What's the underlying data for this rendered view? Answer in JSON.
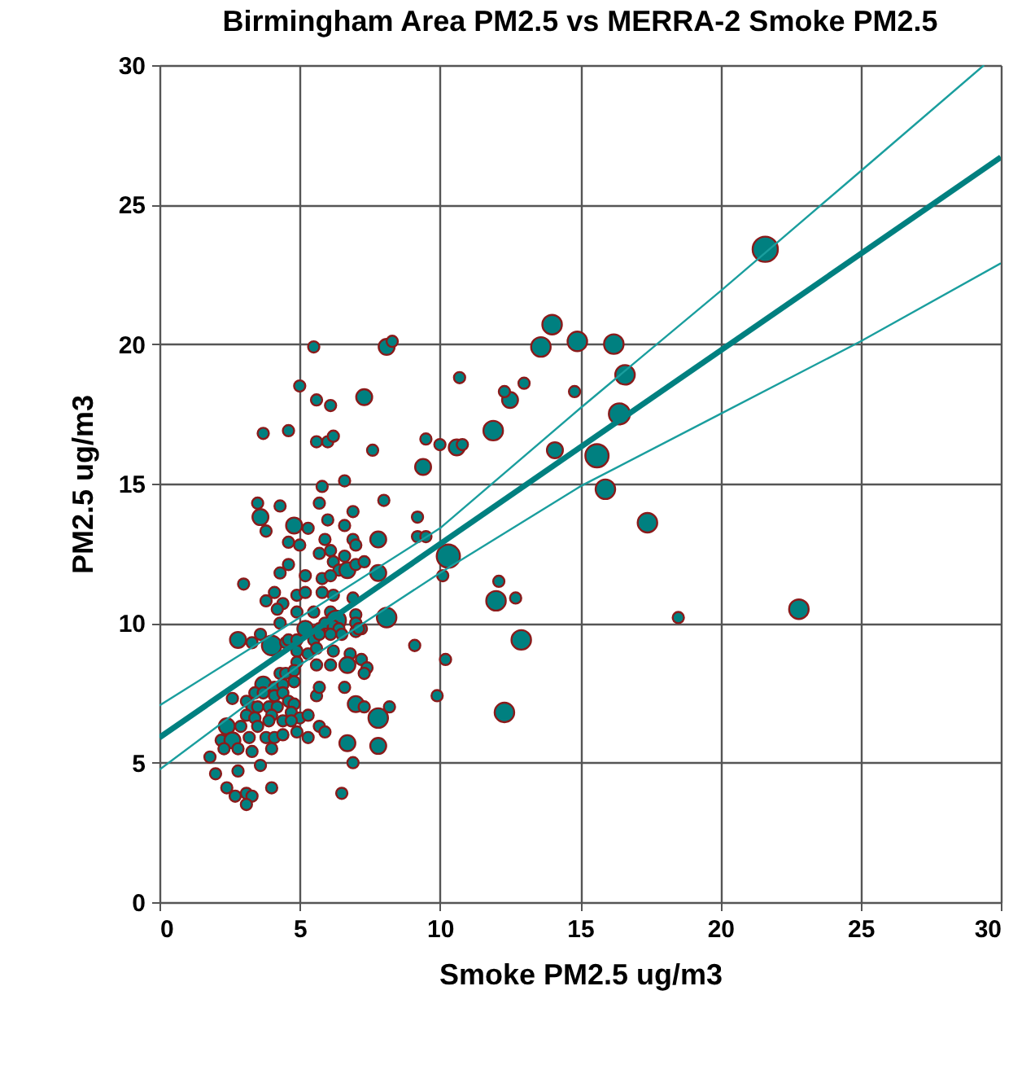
{
  "chart_data": {
    "type": "bubble",
    "title": "Birmingham Area PM2.5 vs MERRA-2 Smoke PM2.5",
    "xlabel": "Smoke PM2.5 ug/m3",
    "ylabel": "PM2.5 ug/m3",
    "xlim": [
      0,
      30
    ],
    "ylim": [
      0,
      30
    ],
    "xticks": [
      0,
      5,
      10,
      15,
      20,
      25,
      30
    ],
    "yticks": [
      0,
      5,
      10,
      15,
      20,
      25,
      30
    ],
    "grid": true,
    "legend": false,
    "series": [
      {
        "marker": "circle",
        "color": "#008080",
        "x": [
          5.5,
          8.1,
          8.3,
          5.0,
          5.6,
          6.1,
          7.3,
          3.7,
          4.6,
          5.6,
          6.0,
          6.2,
          7.6,
          9.4,
          6.6,
          5.8,
          5.7,
          6.9,
          8.0,
          3.5,
          3.6,
          4.3,
          3.8,
          4.8,
          6.0,
          6.6,
          5.3,
          4.6,
          5.9,
          6.9,
          7.0,
          7.8,
          9.2,
          9.2,
          9.5,
          5.0,
          4.6,
          5.7,
          6.1,
          6.6,
          6.2,
          6.4,
          6.7,
          7.0,
          7.3,
          7.8,
          4.3,
          5.2,
          5.8,
          6.1,
          3.0,
          4.1,
          4.9,
          5.2,
          5.8,
          6.2,
          3.8,
          4.4,
          6.9,
          4.2,
          4.9,
          5.5,
          6.1,
          7.0,
          4.3,
          6.3,
          8.1,
          7.0,
          7.2,
          5.2,
          5.7,
          5.9,
          6.2,
          6.4,
          2.8,
          3.3,
          3.6,
          4.0,
          4.5,
          4.6,
          4.9,
          5.5,
          5.7,
          6.1,
          6.5,
          7.0,
          7.1,
          9.1,
          4.9,
          5.3,
          5.6,
          6.2,
          6.8,
          4.9,
          6.7,
          7.2,
          7.4,
          5.6,
          6.1,
          4.3,
          4.5,
          4.8,
          7.3,
          3.7,
          4.1,
          4.4,
          4.8,
          5.6,
          5.7,
          6.6,
          2.6,
          3.1,
          3.4,
          3.7,
          4.1,
          4.4,
          3.3,
          3.5,
          3.9,
          4.2,
          4.6,
          4.8,
          7.0,
          7.3,
          8.2,
          3.1,
          3.4,
          4.0,
          4.7,
          5.0,
          2.4,
          2.9,
          3.5,
          3.9,
          4.4,
          4.7,
          5.3,
          7.8,
          2.2,
          2.6,
          3.2,
          3.8,
          4.1,
          4.4,
          4.9,
          5.3,
          5.7,
          2.3,
          2.8,
          3.3,
          4.0,
          5.9,
          6.7,
          7.8,
          1.8,
          6.9,
          2.0,
          2.8,
          3.6,
          2.4,
          4.0,
          2.7,
          3.1,
          3.3,
          3.1,
          6.5,
          14.0,
          13.6,
          14.9,
          16.2,
          16.6,
          16.4,
          15.6,
          15.9,
          17.4,
          14.1,
          11.9,
          12.5,
          12.3,
          13.0,
          14.8,
          10.7,
          9.5,
          10.0,
          10.6,
          10.8,
          10.3,
          10.1,
          12.1,
          12.0,
          12.7,
          12.9,
          10.2,
          9.9,
          12.3,
          18.5,
          22.8,
          21.6
        ],
        "values": [
          19.9,
          19.9,
          20.1,
          18.5,
          18.0,
          17.8,
          18.1,
          16.8,
          16.9,
          16.5,
          16.5,
          16.7,
          16.2,
          15.6,
          15.1,
          14.9,
          14.3,
          14.0,
          14.4,
          14.3,
          13.8,
          14.2,
          13.3,
          13.5,
          13.7,
          13.5,
          13.4,
          12.9,
          13.0,
          13.0,
          12.8,
          13.0,
          13.8,
          13.1,
          13.1,
          12.8,
          12.1,
          12.5,
          12.6,
          12.4,
          12.2,
          11.9,
          11.9,
          12.1,
          12.2,
          11.8,
          11.8,
          11.7,
          11.6,
          11.7,
          11.4,
          11.1,
          11.0,
          11.1,
          11.1,
          11.0,
          10.8,
          10.7,
          10.9,
          10.5,
          10.4,
          10.4,
          10.4,
          10.3,
          10.0,
          10.1,
          10.2,
          10.0,
          9.8,
          9.8,
          9.8,
          10.0,
          9.9,
          9.8,
          9.4,
          9.3,
          9.6,
          9.2,
          9.3,
          9.4,
          9.4,
          9.4,
          9.6,
          9.6,
          9.6,
          9.7,
          9.8,
          9.2,
          9.0,
          8.9,
          9.1,
          9.0,
          8.9,
          8.6,
          8.5,
          8.7,
          8.4,
          8.5,
          8.5,
          8.2,
          8.2,
          8.3,
          8.2,
          7.8,
          7.7,
          7.8,
          7.9,
          7.4,
          7.7,
          7.7,
          7.3,
          7.2,
          7.5,
          7.5,
          7.4,
          7.5,
          7.0,
          7.0,
          7.0,
          7.0,
          7.2,
          7.1,
          7.1,
          7.0,
          7.0,
          6.7,
          6.6,
          6.7,
          6.8,
          6.6,
          6.3,
          6.3,
          6.3,
          6.5,
          6.5,
          6.5,
          6.7,
          6.6,
          5.8,
          5.8,
          5.9,
          5.9,
          5.9,
          6.0,
          6.1,
          5.9,
          6.3,
          5.5,
          5.5,
          5.4,
          5.5,
          6.1,
          5.7,
          5.6,
          5.2,
          5.0,
          4.6,
          4.7,
          4.9,
          4.1,
          4.1,
          3.8,
          3.9,
          3.8,
          3.5,
          3.9,
          20.7,
          19.9,
          20.1,
          20.0,
          18.9,
          17.5,
          16.0,
          14.8,
          13.6,
          16.2,
          16.9,
          18.0,
          18.3,
          18.6,
          18.3,
          18.8,
          16.6,
          16.4,
          16.3,
          16.4,
          12.4,
          11.7,
          11.5,
          10.8,
          10.9,
          9.4,
          8.7,
          7.4,
          6.8,
          10.2,
          10.5,
          23.4
        ],
        "sizes": [
          0.2,
          0.4,
          0.2,
          0.2,
          0.2,
          0.2,
          0.4,
          0.2,
          0.2,
          0.2,
          0.2,
          0.2,
          0.2,
          0.4,
          0.2,
          0.2,
          0.2,
          0.2,
          0.2,
          0.2,
          0.4,
          0.2,
          0.2,
          0.4,
          0.2,
          0.2,
          0.2,
          0.2,
          0.2,
          0.2,
          0.2,
          0.4,
          0.2,
          0.2,
          0.2,
          0.2,
          0.2,
          0.2,
          0.2,
          0.2,
          0.2,
          0.2,
          0.4,
          0.2,
          0.2,
          0.4,
          0.2,
          0.2,
          0.2,
          0.2,
          0.2,
          0.2,
          0.2,
          0.2,
          0.2,
          0.2,
          0.2,
          0.2,
          0.2,
          0.2,
          0.2,
          0.2,
          0.2,
          0.2,
          0.2,
          0.6,
          0.6,
          0.2,
          0.2,
          0.4,
          0.2,
          0.2,
          0.2,
          0.2,
          0.4,
          0.2,
          0.2,
          0.6,
          0.2,
          0.2,
          0.2,
          0.2,
          0.2,
          0.2,
          0.2,
          0.2,
          0.2,
          0.2,
          0.2,
          0.2,
          0.2,
          0.2,
          0.2,
          0.2,
          0.4,
          0.2,
          0.2,
          0.2,
          0.2,
          0.2,
          0.2,
          0.2,
          0.2,
          0.4,
          0.2,
          0.2,
          0.2,
          0.2,
          0.2,
          0.2,
          0.2,
          0.2,
          0.2,
          0.2,
          0.2,
          0.2,
          0.2,
          0.2,
          0.2,
          0.2,
          0.2,
          0.2,
          0.4,
          0.2,
          0.2,
          0.2,
          0.2,
          0.2,
          0.2,
          0.2,
          0.4,
          0.2,
          0.2,
          0.2,
          0.2,
          0.2,
          0.2,
          0.6,
          0.2,
          0.4,
          0.2,
          0.2,
          0.2,
          0.2,
          0.2,
          0.2,
          0.2,
          0.2,
          0.2,
          0.2,
          0.2,
          0.2,
          0.4,
          0.4,
          0.2,
          0.2,
          0.2,
          0.2,
          0.2,
          0.2,
          0.2,
          0.2,
          0.2,
          0.2,
          0.2,
          0.2,
          0.6,
          0.6,
          0.6,
          0.6,
          0.6,
          0.7,
          0.85,
          0.6,
          0.6,
          0.4,
          0.6,
          0.4,
          0.2,
          0.2,
          0.2,
          0.2,
          0.2,
          0.2,
          0.4,
          0.2,
          0.85,
          0.2,
          0.2,
          0.6,
          0.2,
          0.6,
          0.2,
          0.2,
          0.6,
          0.2,
          0.6,
          1
        ]
      },
      {
        "type": "line",
        "color": "#008080",
        "x": [
          0,
          30
        ],
        "values": [
          5.9,
          26.7
        ]
      },
      {
        "type": "line",
        "color": "#1a9e9e",
        "x": [
          0,
          5,
          10,
          15,
          20,
          25,
          29.4
        ],
        "values": [
          7.05,
          10.2,
          13.4,
          17.7,
          21.9,
          26.2,
          30
        ]
      },
      {
        "type": "line",
        "color": "#1a9e9e",
        "x": [
          0,
          5,
          10,
          15,
          20,
          25,
          30
        ],
        "values": [
          4.75,
          8.5,
          11.8,
          14.9,
          17.5,
          20.1,
          22.9
        ]
      }
    ]
  }
}
